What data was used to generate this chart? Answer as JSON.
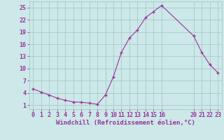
{
  "x": [
    0,
    1,
    2,
    3,
    4,
    5,
    6,
    7,
    8,
    9,
    10,
    11,
    12,
    13,
    14,
    15,
    16,
    20,
    21,
    22,
    23
  ],
  "y": [
    5.0,
    4.2,
    3.5,
    2.7,
    2.2,
    1.8,
    1.7,
    1.5,
    1.2,
    3.5,
    8.0,
    14.0,
    17.5,
    19.5,
    22.5,
    24.0,
    25.5,
    18.0,
    14.0,
    11.0,
    9.0
  ],
  "line_color": "#993399",
  "marker_color": "#993399",
  "bg_color": "#cce8e8",
  "grid_color": "#aacaca",
  "xlabel": "Windchill (Refroidissement éolien,°C)",
  "ylim": [
    0,
    26.5
  ],
  "xlim": [
    -0.5,
    23.5
  ],
  "yticks": [
    1,
    4,
    7,
    10,
    13,
    16,
    19,
    22,
    25
  ],
  "xticks": [
    0,
    1,
    2,
    3,
    4,
    5,
    6,
    7,
    8,
    9,
    10,
    11,
    12,
    13,
    14,
    15,
    16,
    20,
    21,
    22,
    23
  ],
  "xlabel_color": "#993399",
  "tick_color": "#993399",
  "font_size": 6.0
}
